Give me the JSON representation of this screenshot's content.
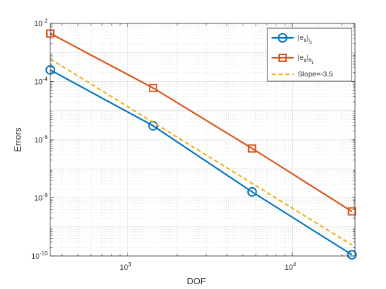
{
  "chart_data": {
    "type": "line",
    "title": "",
    "xlabel": "DOF",
    "ylabel": "Errors",
    "xscale": "log",
    "yscale": "log",
    "xlim": [
      340,
      24000
    ],
    "ylim": [
      1e-10,
      0.01
    ],
    "xticks": [
      {
        "value": 1000,
        "base": "10",
        "exp": "3"
      },
      {
        "value": 10000,
        "base": "10",
        "exp": "4"
      }
    ],
    "yticks": [
      {
        "value": 1e-10,
        "base": "10",
        "exp": "-10"
      },
      {
        "value": 1e-08,
        "base": "10",
        "exp": "-8"
      },
      {
        "value": 1e-06,
        "base": "10",
        "exp": "-6"
      },
      {
        "value": 0.0001,
        "base": "10",
        "exp": "-4"
      },
      {
        "value": 0.01,
        "base": "10",
        "exp": "-2"
      }
    ],
    "grid": true,
    "minor_grid": true,
    "legend_position": "top-right",
    "series": [
      {
        "name": "|e_s|_{l_2}",
        "legend": {
          "pre": "|e",
          "sub1": "s",
          "mid": "|",
          "sub2": "l",
          "subsub": "2"
        },
        "color": "#0072BD",
        "marker": "circle",
        "style": "solid",
        "x": [
          340,
          1430,
          5700,
          23000
        ],
        "y": [
          0.00025,
          3e-06,
          1.6e-08,
          1.1e-10
        ]
      },
      {
        "name": "|e_s|_{h_1}",
        "legend": {
          "pre": "|e",
          "sub1": "s",
          "mid": "|",
          "sub2": "h",
          "subsub": "1"
        },
        "color": "#D95319",
        "marker": "square",
        "style": "solid",
        "x": [
          340,
          1430,
          5700,
          23000
        ],
        "y": [
          0.0045,
          6e-05,
          5e-07,
          3.4e-09
        ]
      },
      {
        "name": "Slope=-3.5",
        "legend": {
          "plain": "Slope=-3.5"
        },
        "color": "#EDB120",
        "marker": "none",
        "style": "dashed",
        "x": [
          340,
          23000
        ],
        "y": [
          0.0006,
          2.4e-10
        ]
      }
    ]
  }
}
